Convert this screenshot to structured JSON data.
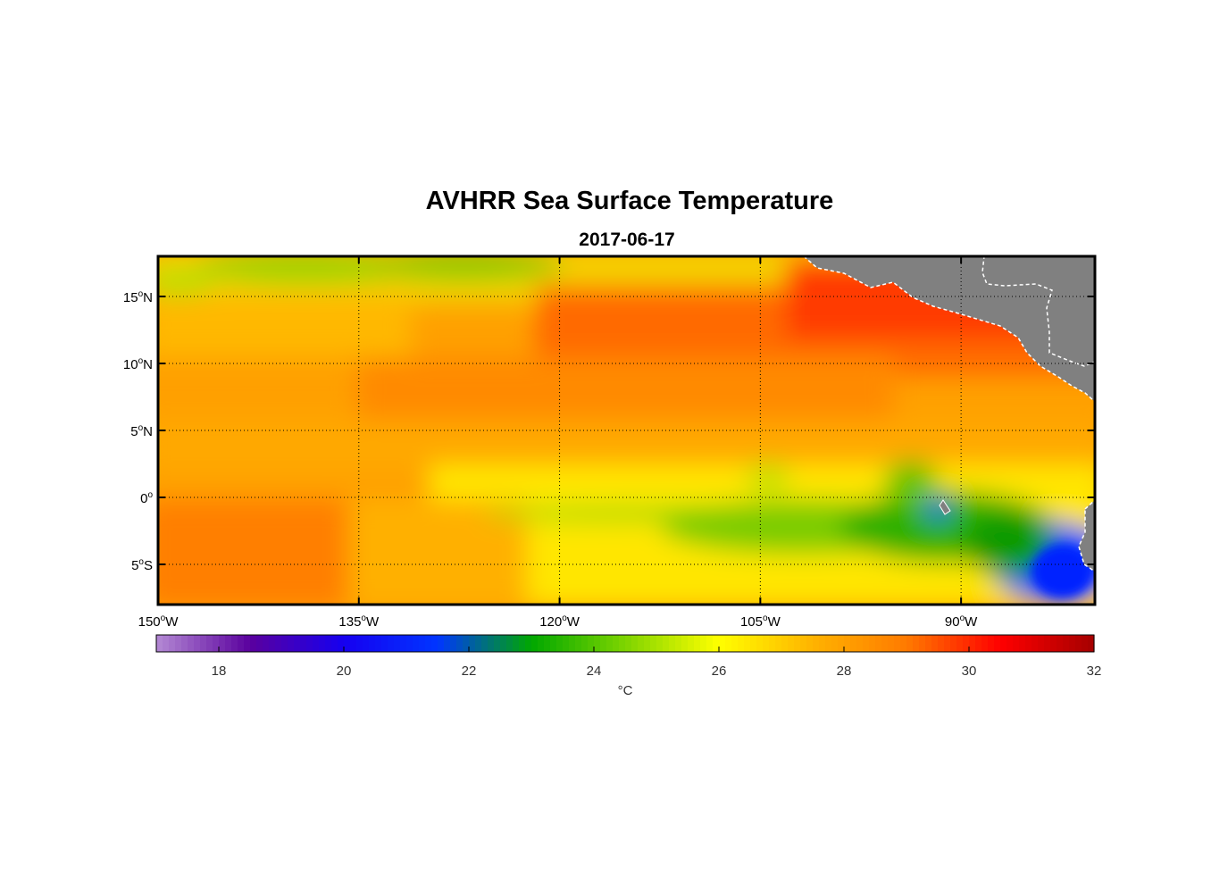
{
  "title": "AVHRR Sea Surface Temperature",
  "subtitle": "2017-06-17",
  "map": {
    "projection": "equirectangular",
    "lon_range": [
      -150,
      -80
    ],
    "lat_range": [
      -8,
      18
    ],
    "grid": "dotted",
    "land_color": "#808080",
    "lon_ticks": [
      {
        "value": -150,
        "label": "150",
        "sup": "o",
        "suffix": "W"
      },
      {
        "value": -135,
        "label": "135",
        "sup": "o",
        "suffix": "W"
      },
      {
        "value": -120,
        "label": "120",
        "sup": "o",
        "suffix": "W"
      },
      {
        "value": -105,
        "label": "105",
        "sup": "o",
        "suffix": "W"
      },
      {
        "value": -90,
        "label": "90",
        "sup": "o",
        "suffix": "W"
      }
    ],
    "lat_ticks": [
      {
        "value": 15,
        "label": "15",
        "sup": "o",
        "suffix": "N"
      },
      {
        "value": 10,
        "label": "10",
        "sup": "o",
        "suffix": "N"
      },
      {
        "value": 5,
        "label": "5",
        "sup": "o",
        "suffix": "N"
      },
      {
        "value": 0,
        "label": "0",
        "sup": "o",
        "suffix": ""
      },
      {
        "value": -5,
        "label": "5",
        "sup": "o",
        "suffix": "S"
      }
    ]
  },
  "colorbar": {
    "range": [
      17,
      32
    ],
    "ticks": [
      18,
      20,
      22,
      24,
      26,
      28,
      30,
      32
    ],
    "unit": "°C",
    "colors": [
      "#b48ad4",
      "#5a009e",
      "#1600f0",
      "#0035ff",
      "#00a800",
      "#7ed400",
      "#ffff00",
      "#ffb300",
      "#ff7a00",
      "#ff0000",
      "#a50000"
    ]
  }
}
